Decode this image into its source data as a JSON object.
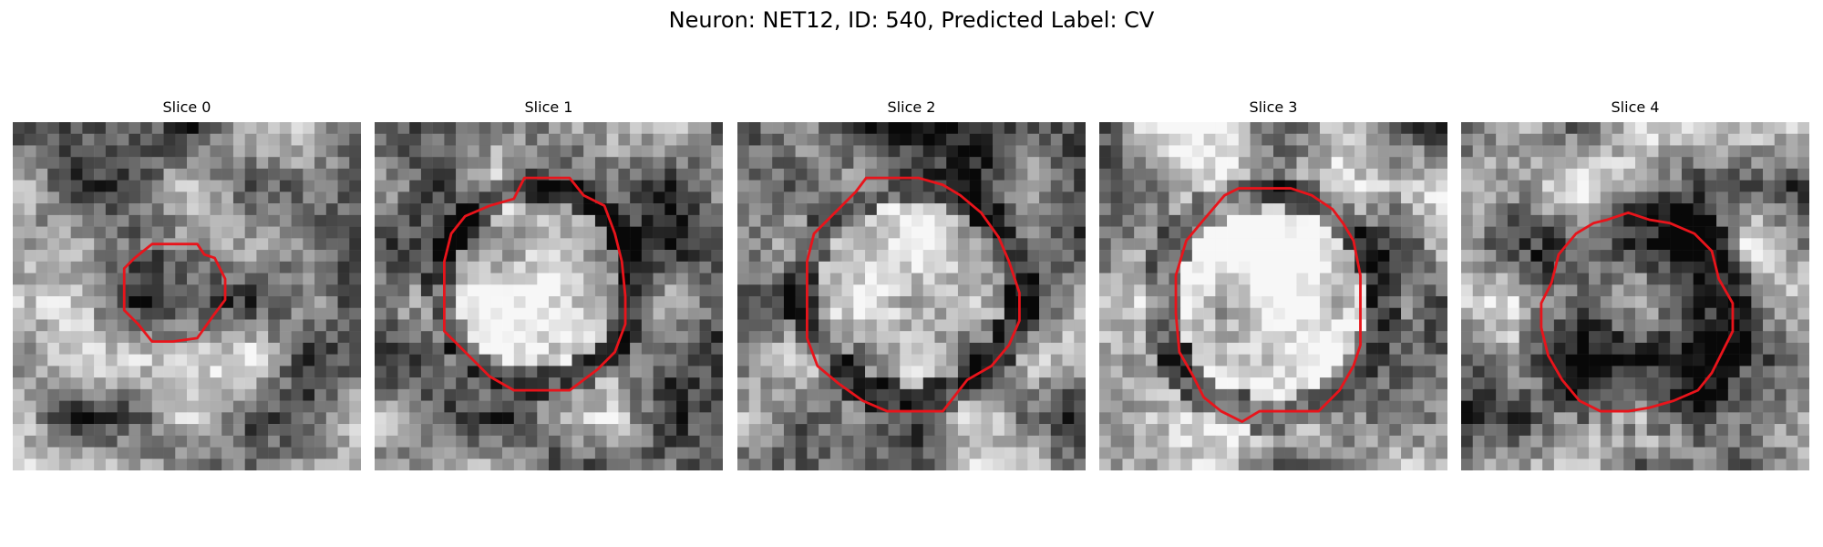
{
  "figure": {
    "title": "Neuron: NET12, ID: 540, Predicted Label: CV"
  },
  "panels": [
    {
      "title": "Slice 0",
      "seed": 11,
      "contour": [
        [
          0.4,
          0.35
        ],
        [
          0.53,
          0.35
        ],
        [
          0.55,
          0.38
        ],
        [
          0.58,
          0.39
        ],
        [
          0.61,
          0.45
        ],
        [
          0.61,
          0.51
        ],
        [
          0.58,
          0.55
        ],
        [
          0.53,
          0.62
        ],
        [
          0.46,
          0.63
        ],
        [
          0.4,
          0.63
        ],
        [
          0.36,
          0.58
        ],
        [
          0.32,
          0.54
        ],
        [
          0.32,
          0.42
        ],
        [
          0.35,
          0.39
        ]
      ],
      "shading": {
        "center": [
          0.48,
          0.5
        ],
        "radius": 0.12,
        "inside": -0.05,
        "ring": -0.1,
        "base": 0.55
      }
    },
    {
      "title": "Slice 1",
      "seed": 23,
      "contour": [
        [
          0.4,
          0.22
        ],
        [
          0.43,
          0.16
        ],
        [
          0.49,
          0.16
        ],
        [
          0.56,
          0.16
        ],
        [
          0.6,
          0.21
        ],
        [
          0.66,
          0.24
        ],
        [
          0.69,
          0.32
        ],
        [
          0.71,
          0.4
        ],
        [
          0.72,
          0.5
        ],
        [
          0.72,
          0.58
        ],
        [
          0.69,
          0.66
        ],
        [
          0.64,
          0.71
        ],
        [
          0.56,
          0.77
        ],
        [
          0.49,
          0.77
        ],
        [
          0.4,
          0.77
        ],
        [
          0.33,
          0.73
        ],
        [
          0.27,
          0.67
        ],
        [
          0.2,
          0.6
        ],
        [
          0.2,
          0.5
        ],
        [
          0.2,
          0.4
        ],
        [
          0.22,
          0.32
        ],
        [
          0.26,
          0.27
        ],
        [
          0.33,
          0.24
        ]
      ],
      "shading": {
        "center": [
          0.47,
          0.47
        ],
        "radius": 0.28,
        "inside": 0.22,
        "ring": -0.3,
        "base": 0.5
      }
    },
    {
      "title": "Slice 2",
      "seed": 37,
      "contour": [
        [
          0.34,
          0.2
        ],
        [
          0.37,
          0.16
        ],
        [
          0.45,
          0.16
        ],
        [
          0.52,
          0.16
        ],
        [
          0.59,
          0.18
        ],
        [
          0.64,
          0.21
        ],
        [
          0.7,
          0.26
        ],
        [
          0.75,
          0.33
        ],
        [
          0.78,
          0.4
        ],
        [
          0.81,
          0.49
        ],
        [
          0.81,
          0.57
        ],
        [
          0.78,
          0.64
        ],
        [
          0.73,
          0.7
        ],
        [
          0.66,
          0.74
        ],
        [
          0.59,
          0.83
        ],
        [
          0.52,
          0.83
        ],
        [
          0.43,
          0.83
        ],
        [
          0.36,
          0.8
        ],
        [
          0.29,
          0.75
        ],
        [
          0.23,
          0.7
        ],
        [
          0.2,
          0.62
        ],
        [
          0.2,
          0.5
        ],
        [
          0.2,
          0.4
        ],
        [
          0.22,
          0.32
        ],
        [
          0.27,
          0.27
        ]
      ],
      "shading": {
        "center": [
          0.5,
          0.49
        ],
        "radius": 0.31,
        "inside": 0.2,
        "ring": -0.22,
        "base": 0.5
      }
    },
    {
      "title": "Slice 3",
      "seed": 41,
      "contour": [
        [
          0.36,
          0.21
        ],
        [
          0.4,
          0.19
        ],
        [
          0.47,
          0.19
        ],
        [
          0.55,
          0.19
        ],
        [
          0.61,
          0.21
        ],
        [
          0.67,
          0.25
        ],
        [
          0.7,
          0.29
        ],
        [
          0.73,
          0.34
        ],
        [
          0.75,
          0.44
        ],
        [
          0.75,
          0.55
        ],
        [
          0.75,
          0.64
        ],
        [
          0.73,
          0.7
        ],
        [
          0.69,
          0.77
        ],
        [
          0.63,
          0.83
        ],
        [
          0.55,
          0.83
        ],
        [
          0.46,
          0.83
        ],
        [
          0.41,
          0.86
        ],
        [
          0.35,
          0.83
        ],
        [
          0.3,
          0.79
        ],
        [
          0.27,
          0.73
        ],
        [
          0.23,
          0.66
        ],
        [
          0.22,
          0.55
        ],
        [
          0.22,
          0.44
        ],
        [
          0.25,
          0.34
        ],
        [
          0.3,
          0.28
        ]
      ],
      "shading": {
        "center": [
          0.49,
          0.52
        ],
        "radius": 0.32,
        "inside": 0.25,
        "ring": -0.35,
        "base": 0.58
      }
    },
    {
      "title": "Slice 4",
      "seed": 59,
      "contour": [
        [
          0.42,
          0.28
        ],
        [
          0.48,
          0.26
        ],
        [
          0.54,
          0.28
        ],
        [
          0.6,
          0.29
        ],
        [
          0.67,
          0.32
        ],
        [
          0.72,
          0.37
        ],
        [
          0.74,
          0.45
        ],
        [
          0.78,
          0.52
        ],
        [
          0.78,
          0.6
        ],
        [
          0.75,
          0.66
        ],
        [
          0.72,
          0.72
        ],
        [
          0.68,
          0.77
        ],
        [
          0.61,
          0.8
        ],
        [
          0.54,
          0.82
        ],
        [
          0.48,
          0.83
        ],
        [
          0.4,
          0.83
        ],
        [
          0.34,
          0.8
        ],
        [
          0.29,
          0.74
        ],
        [
          0.25,
          0.67
        ],
        [
          0.23,
          0.59
        ],
        [
          0.23,
          0.52
        ],
        [
          0.26,
          0.46
        ],
        [
          0.28,
          0.38
        ],
        [
          0.33,
          0.32
        ],
        [
          0.38,
          0.29
        ]
      ],
      "shading": {
        "center": [
          0.5,
          0.55
        ],
        "radius": 0.3,
        "inside": -0.2,
        "ring": -0.3,
        "base": 0.58
      }
    }
  ]
}
